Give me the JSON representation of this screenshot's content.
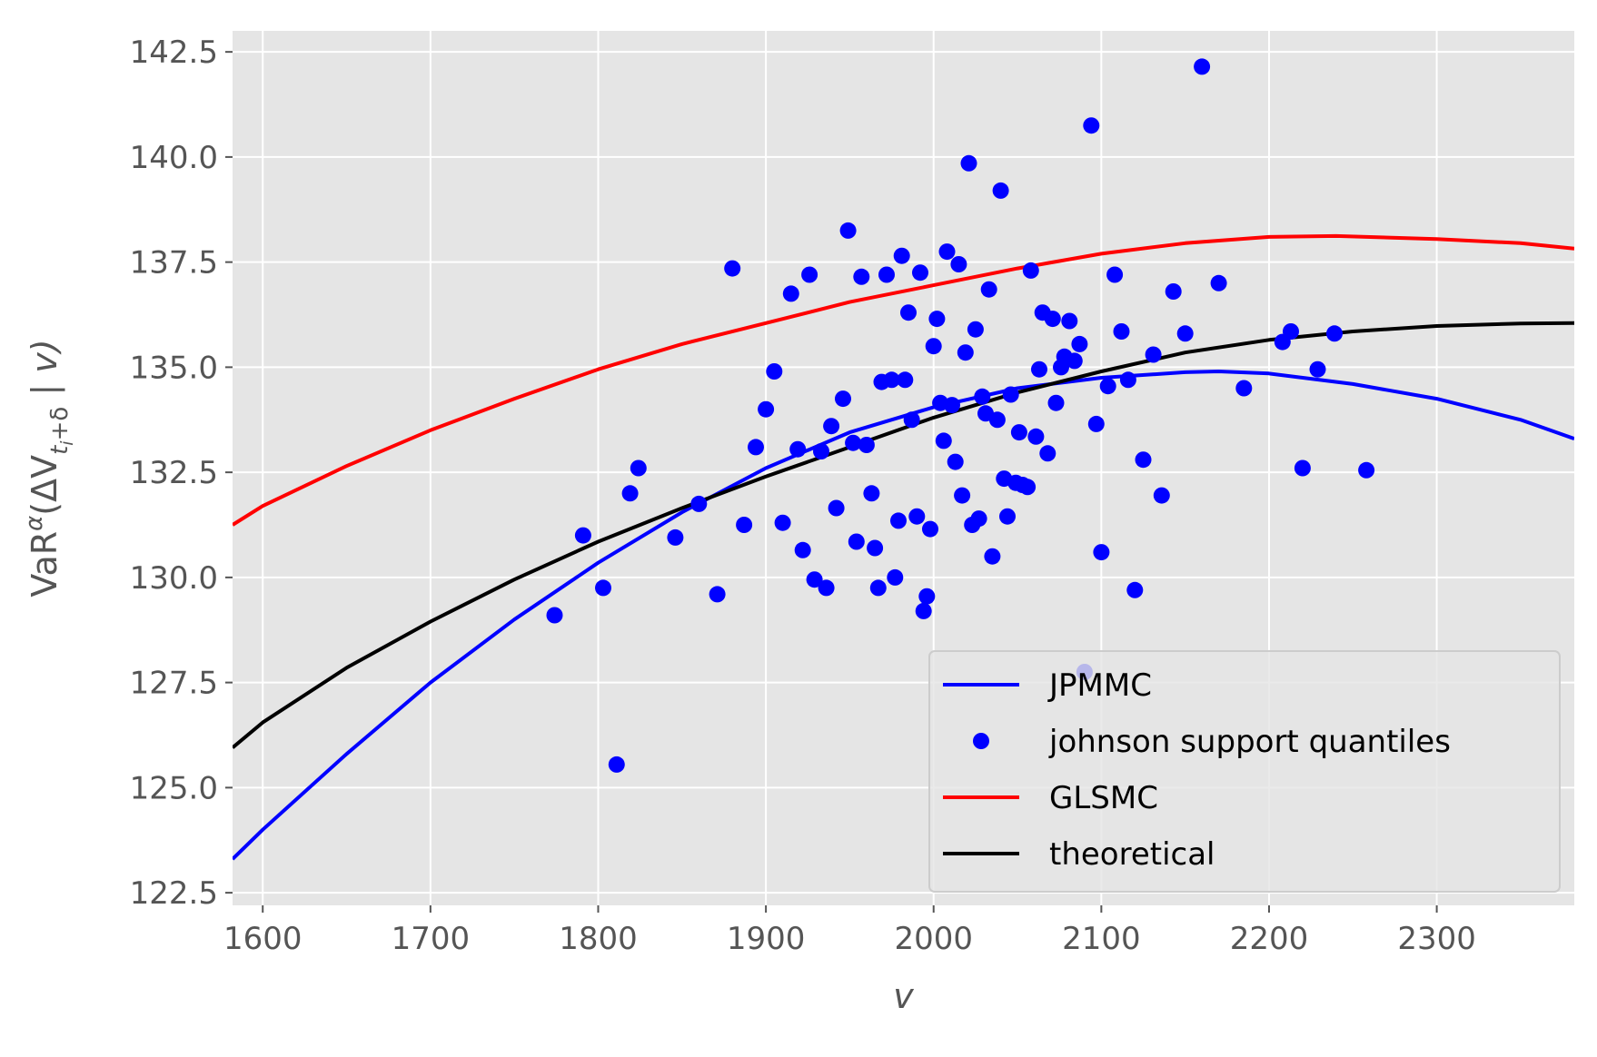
{
  "chart_data": {
    "type": "scatter",
    "xlabel": "v",
    "ylabel_parts": {
      "prefix": "VaR",
      "sup": "α",
      "open": "(ΔV",
      "sub": "t",
      "subsub": "i",
      "sub_tail": "+δ",
      "tail": " | v)"
    },
    "xlim": [
      1582,
      2382
    ],
    "ylim": [
      122.2,
      143.0
    ],
    "xticks": [
      1600,
      1700,
      1800,
      1900,
      2000,
      2100,
      2200,
      2300
    ],
    "yticks": [
      122.5,
      125.0,
      127.5,
      130.0,
      132.5,
      135.0,
      137.5,
      140.0,
      142.5
    ],
    "grid": true,
    "legend_position": "lower-right",
    "colors": {
      "background": "#e5e5e5",
      "grid": "#ffffff",
      "jpmmc": "#0000ff",
      "scatter": "#0000ff",
      "glsmc": "#ff0000",
      "theoretical": "#000000"
    },
    "series": [
      {
        "name": "JPMMC",
        "type": "line",
        "color": "#0000ff",
        "x": [
          1582,
          1600,
          1650,
          1700,
          1750,
          1800,
          1850,
          1900,
          1950,
          2000,
          2050,
          2100,
          2150,
          2170,
          2200,
          2250,
          2300,
          2350,
          2382
        ],
        "y": [
          123.3,
          124.0,
          125.8,
          127.5,
          129.0,
          130.35,
          131.55,
          132.6,
          133.45,
          134.05,
          134.5,
          134.75,
          134.88,
          134.9,
          134.85,
          134.6,
          134.25,
          133.75,
          133.3
        ]
      },
      {
        "name": "GLSMC",
        "type": "line",
        "color": "#ff0000",
        "x": [
          1582,
          1600,
          1650,
          1700,
          1750,
          1800,
          1850,
          1900,
          1950,
          2000,
          2050,
          2100,
          2150,
          2200,
          2240,
          2300,
          2350,
          2382
        ],
        "y": [
          131.25,
          131.7,
          132.65,
          133.5,
          134.25,
          134.95,
          135.55,
          136.05,
          136.55,
          136.95,
          137.35,
          137.7,
          137.95,
          138.1,
          138.12,
          138.05,
          137.95,
          137.82
        ]
      },
      {
        "name": "theoretical",
        "type": "line",
        "color": "#000000",
        "x": [
          1582,
          1600,
          1650,
          1700,
          1750,
          1800,
          1850,
          1900,
          1950,
          2000,
          2050,
          2100,
          2150,
          2200,
          2250,
          2300,
          2350,
          2382
        ],
        "y": [
          125.95,
          126.55,
          127.85,
          128.95,
          129.95,
          130.85,
          131.65,
          132.4,
          133.1,
          133.8,
          134.4,
          134.9,
          135.35,
          135.65,
          135.85,
          135.98,
          136.04,
          136.05
        ]
      },
      {
        "name": "johnson support quantiles",
        "type": "scatter",
        "color": "#0000ff",
        "points": [
          [
            1774,
            129.1
          ],
          [
            1791,
            131.0
          ],
          [
            1803,
            129.75
          ],
          [
            1811,
            125.55
          ],
          [
            1819,
            132.0
          ],
          [
            1824,
            132.6
          ],
          [
            1846,
            130.95
          ],
          [
            1860,
            131.75
          ],
          [
            1871,
            129.6
          ],
          [
            1880,
            137.35
          ],
          [
            1887,
            131.25
          ],
          [
            1894,
            133.1
          ],
          [
            1900,
            134.0
          ],
          [
            1905,
            134.9
          ],
          [
            1910,
            131.3
          ],
          [
            1915,
            136.75
          ],
          [
            1919,
            133.05
          ],
          [
            1922,
            130.65
          ],
          [
            1926,
            137.2
          ],
          [
            1929,
            129.95
          ],
          [
            1933,
            133.0
          ],
          [
            1936,
            129.75
          ],
          [
            1939,
            133.6
          ],
          [
            1942,
            131.65
          ],
          [
            1946,
            134.25
          ],
          [
            1949,
            138.25
          ],
          [
            1952,
            133.2
          ],
          [
            1954,
            130.85
          ],
          [
            1957,
            137.15
          ],
          [
            1960,
            133.15
          ],
          [
            1963,
            132.0
          ],
          [
            1965,
            130.7
          ],
          [
            1967,
            129.75
          ],
          [
            1969,
            134.65
          ],
          [
            1972,
            137.2
          ],
          [
            1975,
            134.7
          ],
          [
            1977,
            130.0
          ],
          [
            1979,
            131.35
          ],
          [
            1981,
            137.65
          ],
          [
            1983,
            134.7
          ],
          [
            1985,
            136.3
          ],
          [
            1987,
            133.75
          ],
          [
            1990,
            131.45
          ],
          [
            1992,
            137.25
          ],
          [
            1994,
            129.2
          ],
          [
            1996,
            129.55
          ],
          [
            1998,
            131.15
          ],
          [
            2000,
            135.5
          ],
          [
            2002,
            136.15
          ],
          [
            2004,
            134.15
          ],
          [
            2006,
            133.25
          ],
          [
            2008,
            137.75
          ],
          [
            2011,
            134.1
          ],
          [
            2013,
            132.75
          ],
          [
            2015,
            137.45
          ],
          [
            2017,
            131.95
          ],
          [
            2019,
            135.35
          ],
          [
            2021,
            139.85
          ],
          [
            2023,
            131.25
          ],
          [
            2025,
            135.9
          ],
          [
            2027,
            131.4
          ],
          [
            2029,
            134.3
          ],
          [
            2031,
            133.9
          ],
          [
            2033,
            136.85
          ],
          [
            2035,
            130.5
          ],
          [
            2038,
            133.75
          ],
          [
            2040,
            139.2
          ],
          [
            2042,
            132.35
          ],
          [
            2044,
            131.45
          ],
          [
            2046,
            134.35
          ],
          [
            2049,
            132.25
          ],
          [
            2051,
            133.45
          ],
          [
            2053,
            132.2
          ],
          [
            2056,
            132.15
          ],
          [
            2058,
            137.3
          ],
          [
            2061,
            133.35
          ],
          [
            2063,
            134.95
          ],
          [
            2065,
            136.3
          ],
          [
            2068,
            132.95
          ],
          [
            2071,
            136.15
          ],
          [
            2073,
            134.15
          ],
          [
            2076,
            135.0
          ],
          [
            2078,
            135.25
          ],
          [
            2081,
            136.1
          ],
          [
            2084,
            135.15
          ],
          [
            2087,
            135.55
          ],
          [
            2090,
            127.75
          ],
          [
            2094,
            140.75
          ],
          [
            2097,
            133.65
          ],
          [
            2100,
            130.6
          ],
          [
            2104,
            134.55
          ],
          [
            2108,
            137.2
          ],
          [
            2112,
            135.85
          ],
          [
            2116,
            134.7
          ],
          [
            2120,
            129.7
          ],
          [
            2125,
            132.8
          ],
          [
            2131,
            135.3
          ],
          [
            2136,
            131.95
          ],
          [
            2143,
            136.8
          ],
          [
            2150,
            135.8
          ],
          [
            2160,
            142.15
          ],
          [
            2170,
            137.0
          ],
          [
            2185,
            134.5
          ],
          [
            2208,
            135.6
          ],
          [
            2213,
            135.85
          ],
          [
            2220,
            132.6
          ],
          [
            2229,
            134.95
          ],
          [
            2239,
            135.8
          ],
          [
            2258,
            132.55
          ]
        ]
      }
    ]
  }
}
